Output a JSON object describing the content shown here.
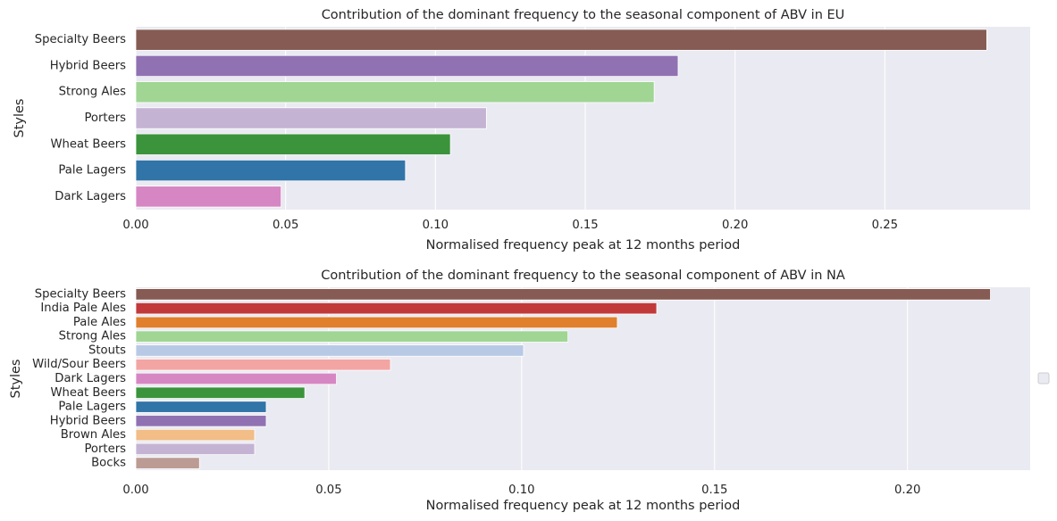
{
  "chart_data": [
    {
      "type": "bar",
      "orientation": "horizontal",
      "title": "Contribution of the dominant frequency to the seasonal component of ABV in EU",
      "xlabel": "Normalised frequency peak at 12 months period",
      "ylabel": "Styles",
      "xlim": [
        0,
        0.2985
      ],
      "xticks": [
        "0.00",
        "0.05",
        "0.10",
        "0.15",
        "0.20",
        "0.25"
      ],
      "xtick_values": [
        0,
        0.05,
        0.1,
        0.15,
        0.2,
        0.25
      ],
      "grid": true,
      "categories": [
        "Specialty Beers",
        "Hybrid Beers",
        "Strong Ales",
        "Porters",
        "Wheat Beers",
        "Pale Lagers",
        "Dark Lagers"
      ],
      "values": [
        0.284,
        0.181,
        0.173,
        0.117,
        0.105,
        0.09,
        0.0485
      ],
      "colors": [
        "#855b53",
        "#9072b3",
        "#a0d594",
        "#c5b3d4",
        "#3b943b",
        "#3174a8",
        "#d686c3"
      ]
    },
    {
      "type": "bar",
      "orientation": "horizontal",
      "title": "Contribution of the dominant frequency to the seasonal component of ABV in NA",
      "xlabel": "Normalised frequency peak at 12 months period",
      "ylabel": "Styles",
      "xlim": [
        0,
        0.2318
      ],
      "xticks": [
        "0.00",
        "0.05",
        "0.10",
        "0.15",
        "0.20"
      ],
      "xtick_values": [
        0,
        0.05,
        0.1,
        0.15,
        0.2
      ],
      "grid": true,
      "legend": "right, empty",
      "categories": [
        "Specialty Beers",
        "India Pale Ales",
        "Pale Ales",
        "Strong Ales",
        "Stouts",
        "Wild/Sour Beers",
        "Dark Lagers",
        "Wheat Beers",
        "Pale Lagers",
        "Hybrid Beers",
        "Brown Ales",
        "Porters",
        "Bocks"
      ],
      "values": [
        0.2215,
        0.135,
        0.1248,
        0.112,
        0.1005,
        0.066,
        0.052,
        0.0438,
        0.0338,
        0.0338,
        0.0308,
        0.0308,
        0.0165
      ],
      "colors": [
        "#855b53",
        "#c2393a",
        "#e07f2c",
        "#a0d594",
        "#b7c9e5",
        "#f3a5a4",
        "#d686c3",
        "#3b943b",
        "#3174a8",
        "#9072b3",
        "#f2bd86",
        "#c5b3d4",
        "#bc9b94"
      ]
    }
  ]
}
